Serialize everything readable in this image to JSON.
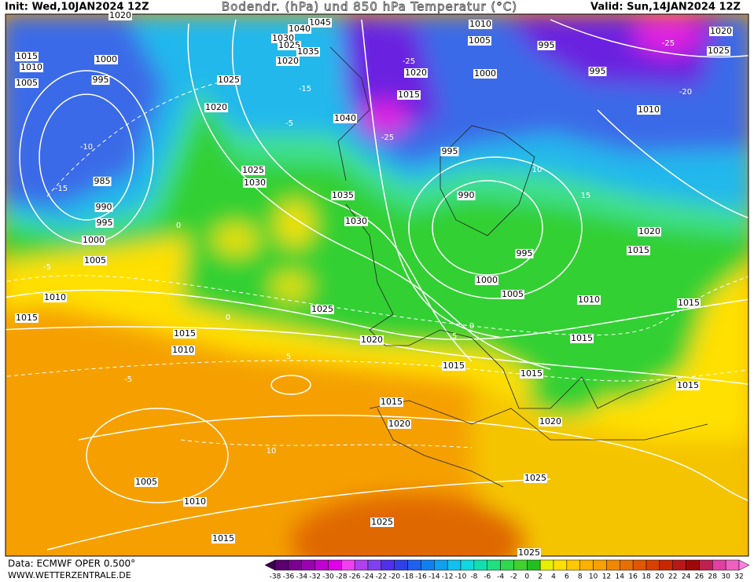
{
  "header": {
    "init": "Init: Wed,10JAN2024 12Z",
    "title": "Bodendr. (hPa) und 850 hPa Temperatur (°C)",
    "valid": "Valid: Sun,14JAN2024 12Z"
  },
  "map": {
    "isobar_labels": [
      "1020",
      "1045",
      "1040",
      "1030",
      "1025",
      "1035",
      "1020",
      "1015",
      "1010",
      "1005",
      "1000",
      "995",
      "1025",
      "1020",
      "1040",
      "1020",
      "1015",
      "1010",
      "1005",
      "995",
      "1000",
      "995",
      "1020",
      "1025",
      "1010",
      "995",
      "990",
      "985",
      "990",
      "995",
      "1000",
      "1005",
      "1025",
      "1030",
      "1035",
      "1030",
      "1020",
      "1015",
      "995",
      "1000",
      "1005",
      "1010",
      "1015",
      "1010",
      "1015",
      "1025",
      "1020",
      "1015",
      "1010",
      "1015",
      "1015",
      "1015",
      "1015",
      "1015",
      "1020",
      "1020",
      "1025",
      "1005",
      "1010",
      "1015",
      "1025",
      "1025"
    ],
    "temperature_labels": [
      "-10",
      "-15",
      "-5",
      "-15",
      "-25",
      "-25",
      "0",
      "-5",
      "0",
      "5",
      "-5",
      "10",
      "5",
      "10",
      "15",
      "-25",
      "-20",
      "0"
    ]
  },
  "footer": {
    "source": "Data: ECMWF OPER 0.500°",
    "website": "WWW.WETTERZENTRALE.DE"
  },
  "color_scale": {
    "ticks": [
      -38,
      -36,
      -34,
      -32,
      -30,
      -28,
      -26,
      -24,
      -22,
      -20,
      -18,
      -16,
      -14,
      -12,
      -10,
      -8,
      -6,
      -4,
      -2,
      0,
      2,
      4,
      6,
      8,
      10,
      12,
      14,
      16,
      18,
      20,
      22,
      24,
      26,
      28,
      30,
      32
    ],
    "colors": [
      "#3c0050",
      "#5a0070",
      "#7a0090",
      "#9a00b0",
      "#c000d0",
      "#e000e8",
      "#f040f0",
      "#b040f0",
      "#8040f0",
      "#5030e8",
      "#3040e8",
      "#2060f0",
      "#1080f0",
      "#10a0f0",
      "#10c0f0",
      "#10d8e0",
      "#10e0b0",
      "#20e080",
      "#30d850",
      "#40d030",
      "#20c020",
      "#e8f000",
      "#ffe000",
      "#ffc800",
      "#ffb000",
      "#f8a000",
      "#f08800",
      "#e87000",
      "#e05800",
      "#d84000",
      "#c82800",
      "#b81818",
      "#a00808",
      "#c02050",
      "#e040a0",
      "#f060c0",
      "#ff80e0"
    ]
  }
}
